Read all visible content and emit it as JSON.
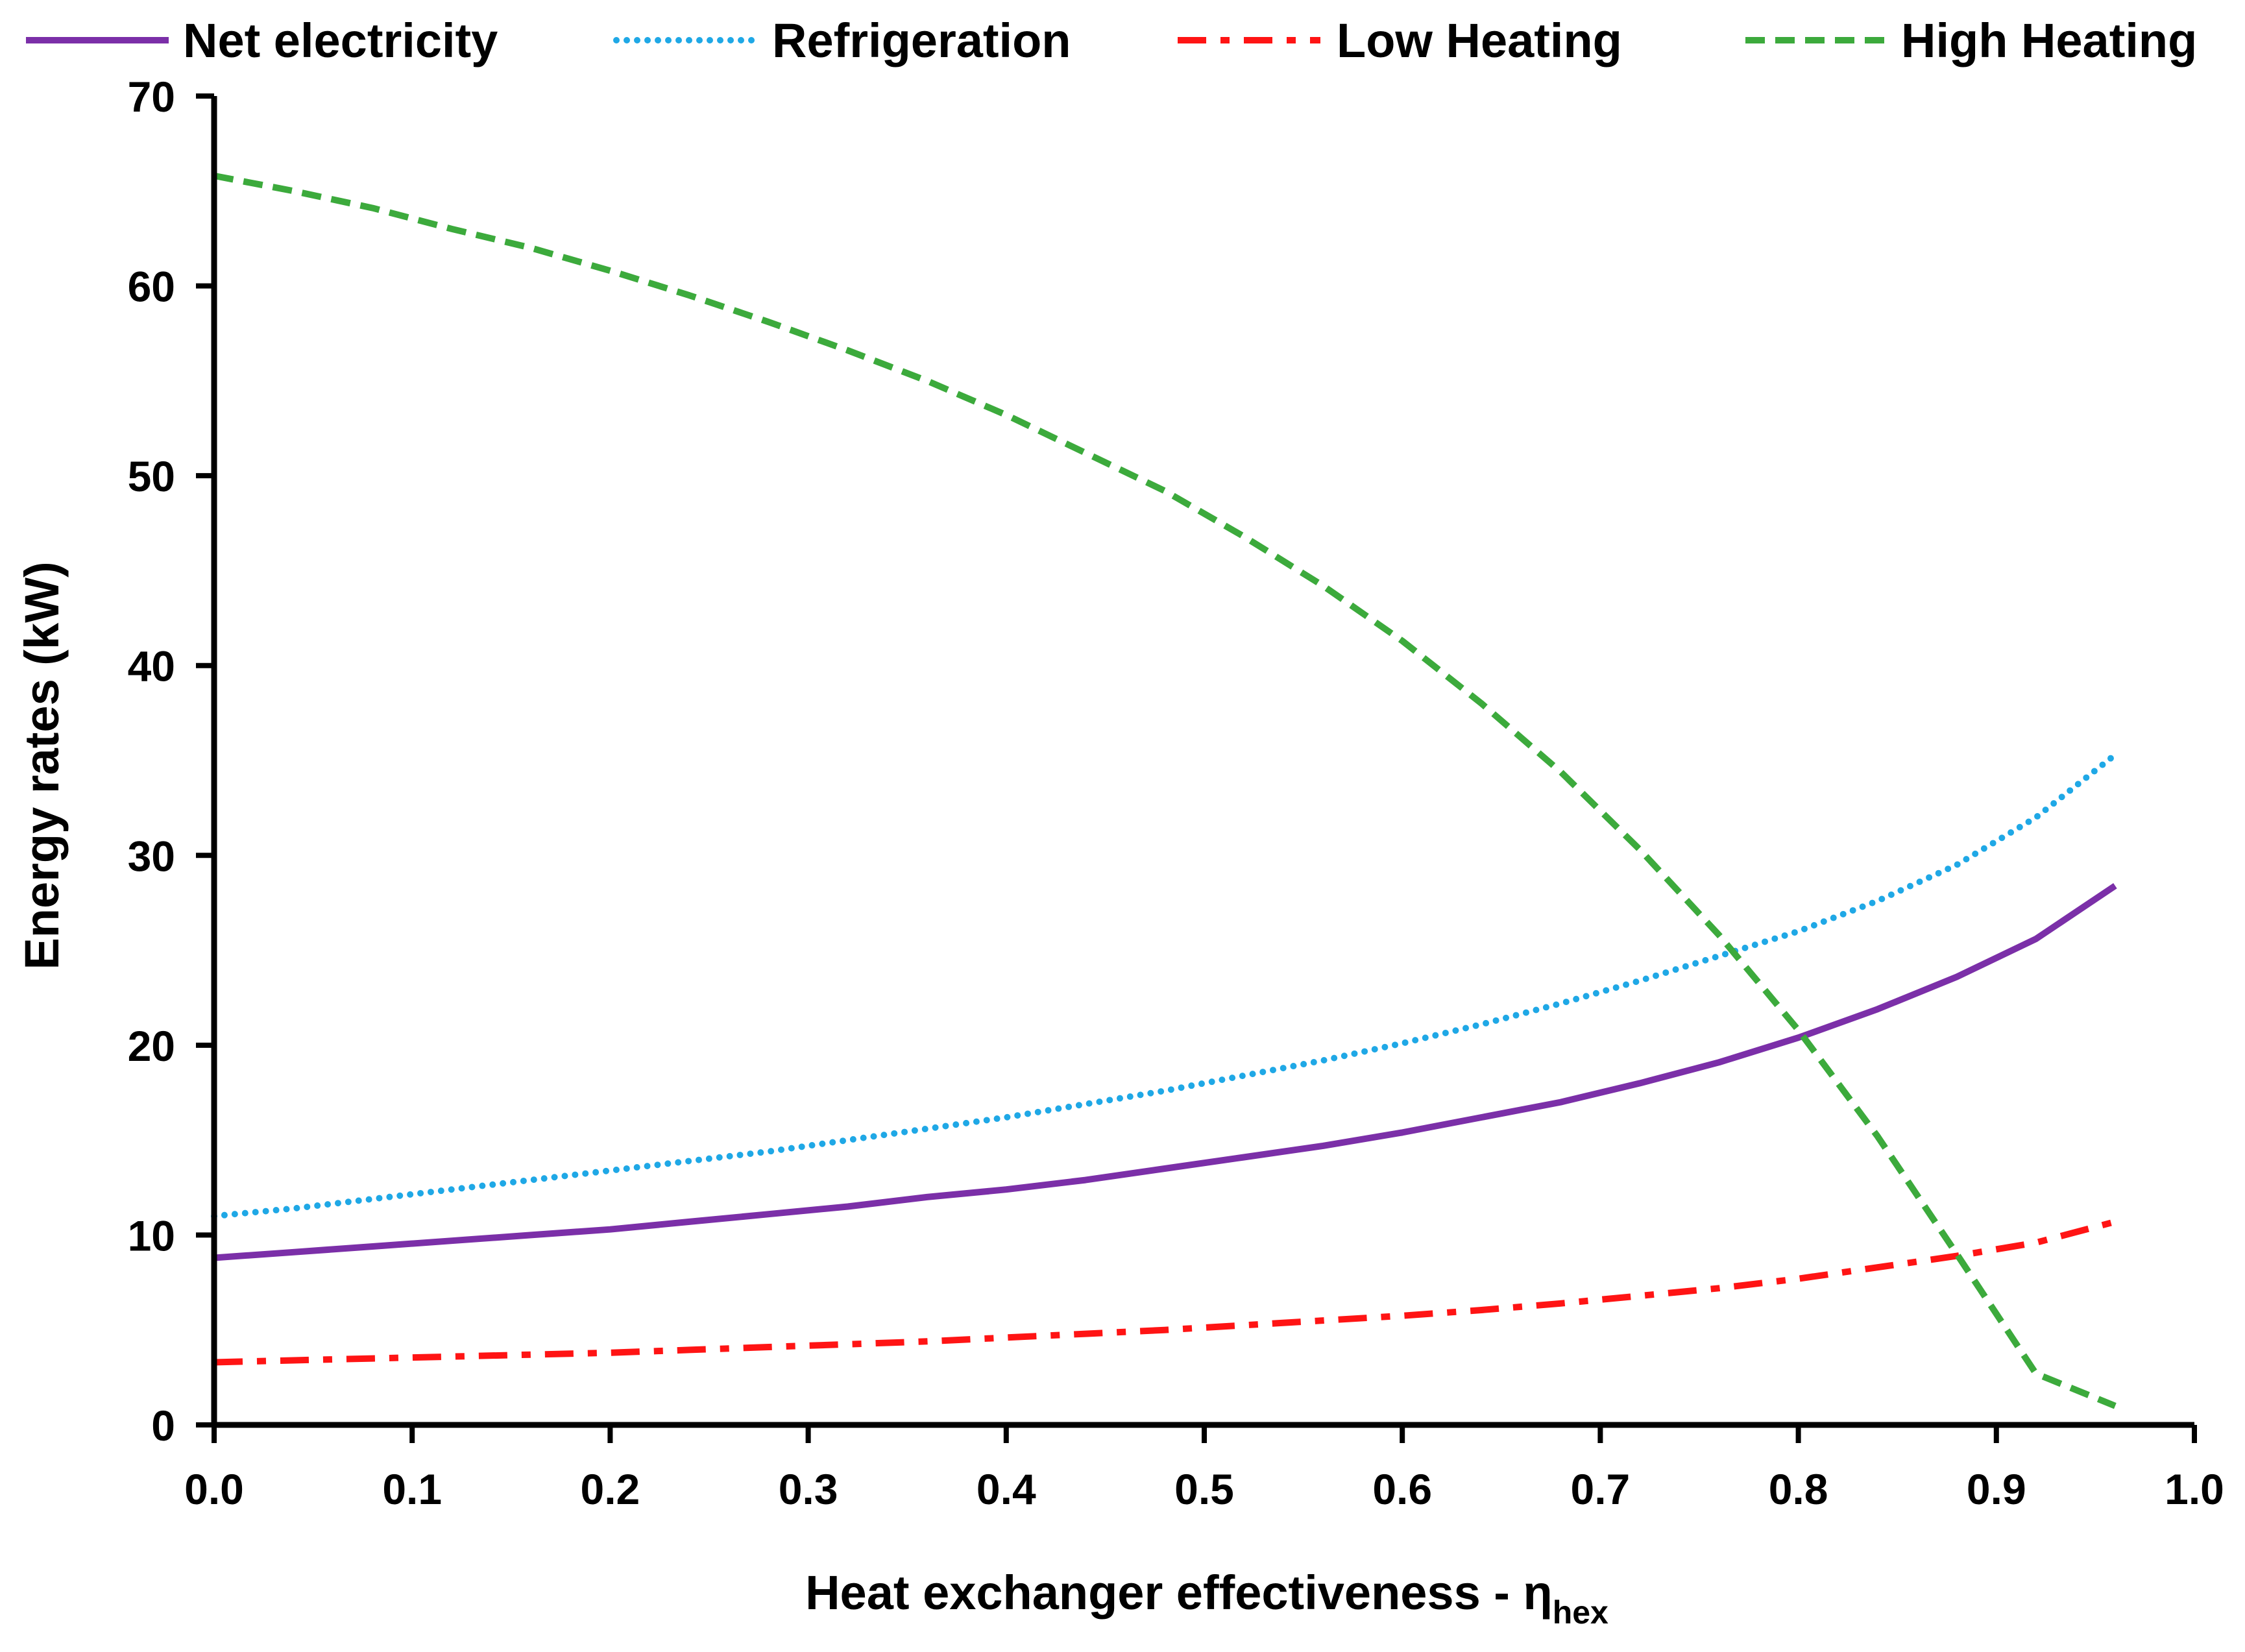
{
  "chart_data": {
    "type": "line",
    "title": "",
    "xlabel": "Heat exchanger effectiveness - η",
    "xlabel_subscript": "hex",
    "ylabel": "Energy rates (kW)",
    "xlim": [
      0.0,
      1.0
    ],
    "ylim": [
      0,
      70
    ],
    "x_ticks": [
      0.0,
      0.1,
      0.2,
      0.3,
      0.4,
      0.5,
      0.6,
      0.7,
      0.8,
      0.9,
      1.0
    ],
    "x_tick_labels": [
      "0.0",
      "0.1",
      "0.2",
      "0.3",
      "0.4",
      "0.5",
      "0.6",
      "0.7",
      "0.8",
      "0.9",
      "1.0"
    ],
    "y_ticks": [
      0,
      10,
      20,
      30,
      40,
      50,
      60,
      70
    ],
    "y_tick_labels": [
      "0",
      "10",
      "20",
      "30",
      "40",
      "50",
      "60",
      "70"
    ],
    "grid": false,
    "legend_position": "top",
    "series": [
      {
        "name": "Net electricity",
        "style": "solid",
        "color": "#7B2FA8",
        "x": [
          0.0,
          0.04,
          0.08,
          0.12,
          0.16,
          0.2,
          0.24,
          0.28,
          0.32,
          0.36,
          0.4,
          0.44,
          0.48,
          0.52,
          0.56,
          0.6,
          0.64,
          0.68,
          0.72,
          0.76,
          0.8,
          0.84,
          0.88,
          0.92,
          0.96
        ],
        "values": [
          8.8,
          9.1,
          9.4,
          9.7,
          10.0,
          10.3,
          10.7,
          11.1,
          11.5,
          12.0,
          12.4,
          12.9,
          13.5,
          14.1,
          14.7,
          15.4,
          16.2,
          17.0,
          18.0,
          19.1,
          20.4,
          21.9,
          23.6,
          25.6,
          28.4
        ]
      },
      {
        "name": "Refrigeration",
        "style": "dotted",
        "color": "#1FA8E6",
        "x": [
          0.0,
          0.04,
          0.08,
          0.12,
          0.16,
          0.2,
          0.24,
          0.28,
          0.32,
          0.36,
          0.4,
          0.44,
          0.48,
          0.52,
          0.56,
          0.6,
          0.64,
          0.68,
          0.72,
          0.76,
          0.8,
          0.84,
          0.88,
          0.92,
          0.96
        ],
        "values": [
          11.0,
          11.4,
          11.9,
          12.4,
          12.9,
          13.4,
          13.9,
          14.4,
          15.0,
          15.6,
          16.2,
          16.9,
          17.6,
          18.4,
          19.2,
          20.1,
          21.1,
          22.2,
          23.4,
          24.7,
          26.0,
          27.6,
          29.5,
          32.0,
          35.3
        ]
      },
      {
        "name": "Low Heating",
        "style": "dashdot",
        "color": "#FF1414",
        "x": [
          0.0,
          0.04,
          0.08,
          0.12,
          0.16,
          0.2,
          0.24,
          0.28,
          0.32,
          0.36,
          0.4,
          0.44,
          0.48,
          0.52,
          0.56,
          0.6,
          0.64,
          0.68,
          0.72,
          0.76,
          0.8,
          0.84,
          0.88,
          0.92,
          0.96
        ],
        "values": [
          3.3,
          3.4,
          3.5,
          3.6,
          3.7,
          3.8,
          3.95,
          4.1,
          4.25,
          4.4,
          4.6,
          4.8,
          5.0,
          5.25,
          5.5,
          5.75,
          6.05,
          6.4,
          6.8,
          7.2,
          7.7,
          8.3,
          8.9,
          9.6,
          10.7
        ]
      },
      {
        "name": "High Heating",
        "style": "dashed",
        "color": "#3CAA3C",
        "x": [
          0.0,
          0.04,
          0.08,
          0.12,
          0.16,
          0.2,
          0.24,
          0.28,
          0.32,
          0.36,
          0.4,
          0.44,
          0.48,
          0.52,
          0.56,
          0.6,
          0.64,
          0.68,
          0.72,
          0.76,
          0.8,
          0.84,
          0.88,
          0.92,
          0.96
        ],
        "values": [
          65.8,
          65.0,
          64.1,
          63.0,
          62.0,
          60.8,
          59.5,
          58.1,
          56.6,
          55.0,
          53.2,
          51.2,
          49.2,
          46.8,
          44.2,
          41.3,
          38.0,
          34.4,
          30.3,
          25.8,
          20.8,
          15.2,
          9.0,
          2.7,
          1.0
        ]
      }
    ]
  }
}
